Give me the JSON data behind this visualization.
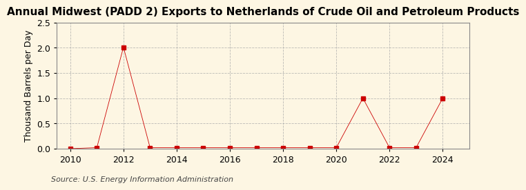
{
  "title": "Annual Midwest (PADD 2) Exports to Netherlands of Crude Oil and Petroleum Products",
  "ylabel": "Thousand Barrels per Day",
  "source": "Source: U.S. Energy Information Administration",
  "background_color": "#fdf6e3",
  "years": [
    2010,
    2011,
    2012,
    2013,
    2014,
    2015,
    2016,
    2017,
    2018,
    2019,
    2020,
    2021,
    2022,
    2023,
    2024
  ],
  "values": [
    0.0,
    0.02,
    2.01,
    0.02,
    0.02,
    0.02,
    0.02,
    0.02,
    0.02,
    0.02,
    0.02,
    1.0,
    0.02,
    0.02,
    1.0
  ],
  "marker_color": "#cc0000",
  "marker_size": 4,
  "xlim": [
    2009.5,
    2025.0
  ],
  "ylim": [
    0.0,
    2.5
  ],
  "yticks": [
    0.0,
    0.5,
    1.0,
    1.5,
    2.0,
    2.5
  ],
  "xticks": [
    2010,
    2012,
    2014,
    2016,
    2018,
    2020,
    2022,
    2024
  ],
  "grid_color": "#aaaaaa",
  "title_fontsize": 11,
  "axis_fontsize": 9,
  "tick_fontsize": 9,
  "source_fontsize": 8
}
